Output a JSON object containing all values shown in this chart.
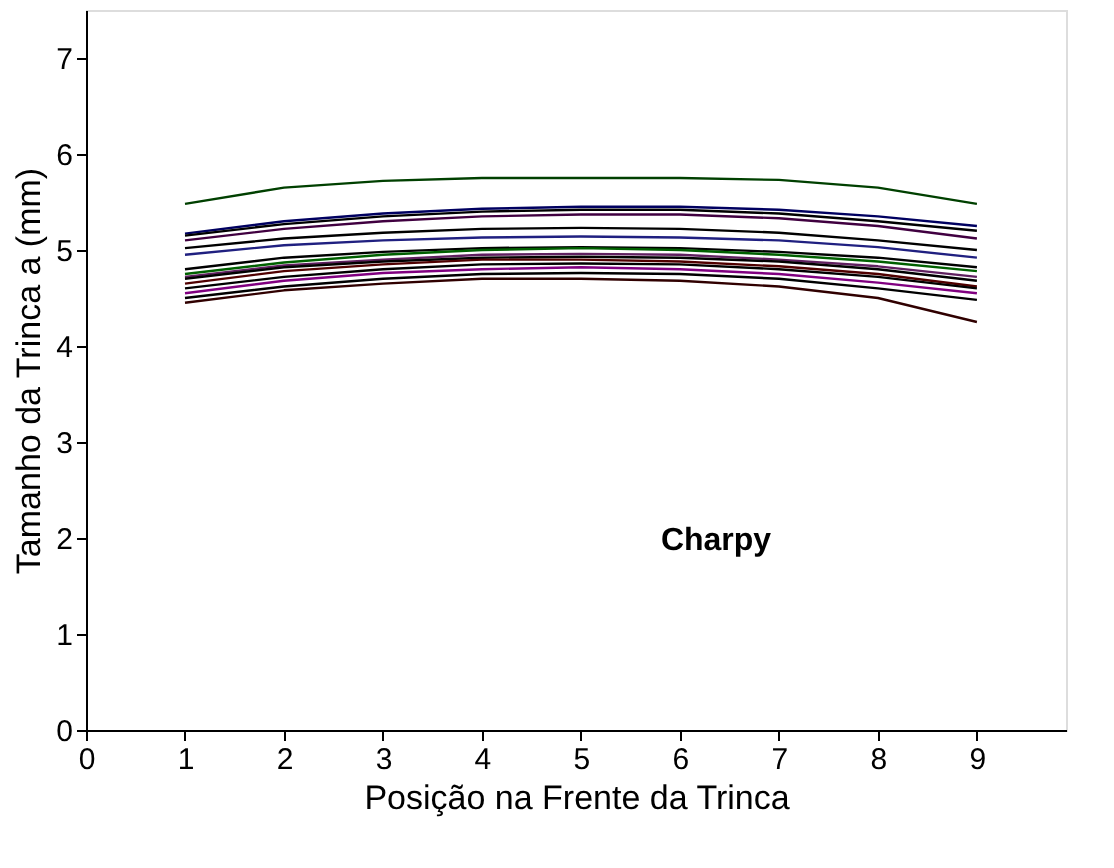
{
  "chart_data": {
    "type": "line",
    "xlabel": "Posição na Frente da Trinca",
    "ylabel": "Tamanho da Trinca  a  (mm)",
    "x": [
      1,
      2,
      3,
      4,
      5,
      6,
      7,
      8,
      9
    ],
    "xlim": [
      0,
      9.9
    ],
    "xticks": [
      0,
      1,
      2,
      3,
      4,
      5,
      6,
      7,
      8,
      9
    ],
    "ylim": [
      0,
      7.5
    ],
    "yticks": [
      0,
      1,
      2,
      3,
      4,
      5,
      6,
      7
    ],
    "grid": false,
    "legend": false,
    "marker": "none",
    "line_style": "solid",
    "annotations": [
      "Charpy"
    ],
    "series": [
      {
        "color": "#004000",
        "values": [
          5.48,
          5.65,
          5.72,
          5.75,
          5.75,
          5.75,
          5.73,
          5.65,
          5.48
        ]
      },
      {
        "color": "#000060",
        "values": [
          5.17,
          5.3,
          5.38,
          5.43,
          5.45,
          5.45,
          5.42,
          5.35,
          5.25
        ]
      },
      {
        "color": "#000000",
        "values": [
          5.15,
          5.27,
          5.35,
          5.4,
          5.42,
          5.42,
          5.38,
          5.3,
          5.2
        ]
      },
      {
        "color": "#400040",
        "values": [
          5.1,
          5.22,
          5.3,
          5.35,
          5.37,
          5.37,
          5.33,
          5.25,
          5.12
        ]
      },
      {
        "color": "#000000",
        "values": [
          5.02,
          5.12,
          5.18,
          5.22,
          5.23,
          5.22,
          5.18,
          5.1,
          5.0
        ]
      },
      {
        "color": "#202080",
        "values": [
          4.95,
          5.05,
          5.1,
          5.13,
          5.14,
          5.13,
          5.1,
          5.03,
          4.92
        ]
      },
      {
        "color": "#000000",
        "values": [
          4.8,
          4.92,
          4.98,
          5.02,
          5.03,
          5.02,
          4.98,
          4.92,
          4.82
        ]
      },
      {
        "color": "#006000",
        "values": [
          4.75,
          4.87,
          4.95,
          5.0,
          5.02,
          5.0,
          4.95,
          4.88,
          4.78
        ]
      },
      {
        "color": "#602060",
        "values": [
          4.72,
          4.84,
          4.9,
          4.95,
          4.96,
          4.95,
          4.9,
          4.83,
          4.72
        ]
      },
      {
        "color": "#000000",
        "values": [
          4.7,
          4.82,
          4.88,
          4.92,
          4.93,
          4.92,
          4.88,
          4.8,
          4.68
        ]
      },
      {
        "color": "#500000",
        "values": [
          4.65,
          4.78,
          4.85,
          4.9,
          4.9,
          4.88,
          4.83,
          4.75,
          4.62
        ]
      },
      {
        "color": "#000000",
        "values": [
          4.6,
          4.72,
          4.8,
          4.85,
          4.86,
          4.85,
          4.8,
          4.72,
          4.6
        ]
      },
      {
        "color": "#800080",
        "values": [
          4.55,
          4.68,
          4.76,
          4.8,
          4.82,
          4.8,
          4.75,
          4.66,
          4.55
        ]
      },
      {
        "color": "#000000",
        "values": [
          4.5,
          4.62,
          4.7,
          4.75,
          4.76,
          4.75,
          4.7,
          4.6,
          4.48
        ]
      },
      {
        "color": "#300000",
        "values": [
          4.45,
          4.58,
          4.65,
          4.7,
          4.7,
          4.68,
          4.62,
          4.5,
          4.25
        ]
      }
    ]
  }
}
